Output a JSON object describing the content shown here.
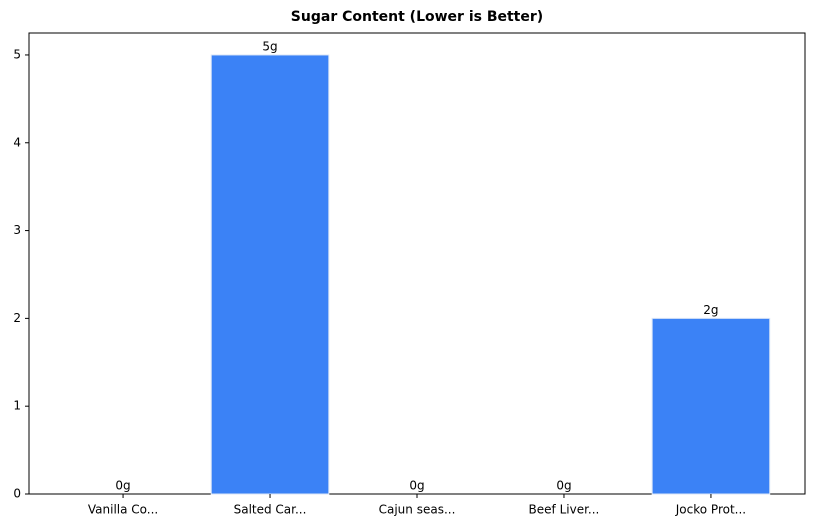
{
  "chart_data": {
    "type": "bar",
    "title": "Sugar Content (Lower is Better)",
    "categories": [
      "Vanilla Co...",
      "Salted Car...",
      "Cajun seas...",
      "Beef Liver...",
      "Jocko Prot..."
    ],
    "values": [
      0,
      5,
      0,
      0,
      2
    ],
    "value_labels": [
      "0g",
      "5g",
      "0g",
      "0g",
      "2g"
    ],
    "color": "#3b82f6",
    "ylim": [
      0,
      5.25
    ],
    "yticks": [
      0,
      1,
      2,
      3,
      4,
      5
    ],
    "grid": false
  }
}
